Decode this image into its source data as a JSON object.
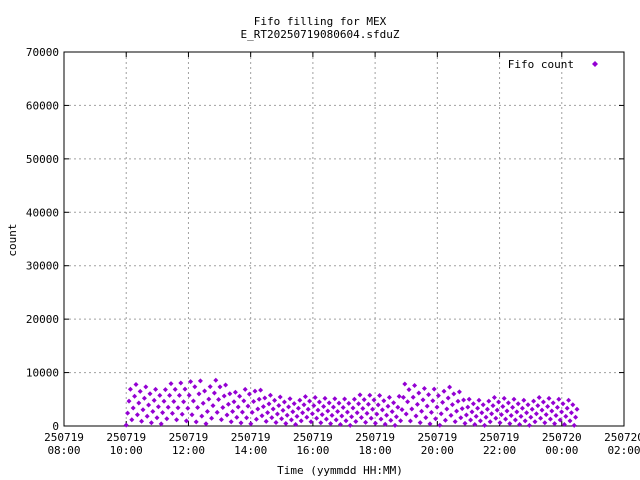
{
  "chart_data": {
    "type": "scatter",
    "title": "Fifo filling for MEX",
    "subtitle": "E_RT20250719080604.sfduZ",
    "xlabel": "Time (yymmdd HH:MM)",
    "ylabel": "count",
    "xlim": [
      "2025-07-19 08:00",
      "2025-07-20 02:00"
    ],
    "ylim": [
      0,
      70000
    ],
    "grid": true,
    "legend_position": "top-right",
    "x_ticks": [
      {
        "top": "250719",
        "bottom": "08:00"
      },
      {
        "top": "250719",
        "bottom": "10:00"
      },
      {
        "top": "250719",
        "bottom": "12:00"
      },
      {
        "top": "250719",
        "bottom": "14:00"
      },
      {
        "top": "250719",
        "bottom": "16:00"
      },
      {
        "top": "250719",
        "bottom": "18:00"
      },
      {
        "top": "250719",
        "bottom": "20:00"
      },
      {
        "top": "250719",
        "bottom": "22:00"
      },
      {
        "top": "250720",
        "bottom": "00:00"
      },
      {
        "top": "250720",
        "bottom": "02:00"
      }
    ],
    "y_ticks": [
      "0",
      "10000",
      "20000",
      "30000",
      "40000",
      "50000",
      "60000",
      "70000"
    ],
    "series": [
      {
        "name": "Fifo count",
        "color": "#9400d3",
        "marker": "diamond",
        "time_range_hours": [
          10.0,
          24.5
        ],
        "envelope_max": [
          [
            10.0,
            8200
          ],
          [
            10.5,
            7900
          ],
          [
            11.0,
            7500
          ],
          [
            11.5,
            8000
          ],
          [
            12.0,
            8600
          ],
          [
            12.3,
            9700
          ],
          [
            12.6,
            8300
          ],
          [
            13.0,
            8700
          ],
          [
            13.5,
            6700
          ],
          [
            14.0,
            8000
          ],
          [
            14.5,
            6000
          ],
          [
            15.5,
            5500
          ],
          [
            16.5,
            5500
          ],
          [
            17.5,
            6000
          ],
          [
            18.2,
            6300
          ],
          [
            18.7,
            5900
          ],
          [
            19.0,
            8500
          ],
          [
            19.5,
            7700
          ],
          [
            20.0,
            7900
          ],
          [
            20.6,
            7300
          ],
          [
            21.0,
            5500
          ],
          [
            22.0,
            5500
          ],
          [
            23.0,
            5500
          ],
          [
            24.0,
            5500
          ],
          [
            24.5,
            5500
          ]
        ]
      }
    ]
  }
}
